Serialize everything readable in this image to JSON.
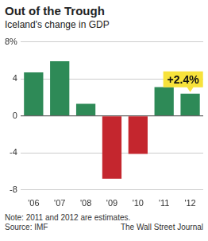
{
  "chart_data": {
    "type": "bar",
    "title": "Out of the Trough",
    "subtitle": "Iceland's change in GDP",
    "categories": [
      "'06",
      "'07",
      "'08",
      "'09",
      "'10",
      "'11",
      "'12"
    ],
    "values": [
      4.7,
      5.9,
      1.3,
      -6.8,
      -4.1,
      3.1,
      2.4
    ],
    "colors": [
      "#2e8a57",
      "#2e8a57",
      "#2e8a57",
      "#c4262e",
      "#c4262e",
      "#2e8a57",
      "#2e8a57"
    ],
    "ylim": [
      -8,
      8
    ],
    "yticks": [
      {
        "value": 8,
        "label": "8%"
      },
      4,
      0,
      -4,
      -8
    ],
    "grid": true,
    "annotations": [
      {
        "text": "+2.4%",
        "x": "'12",
        "y": 2.4
      }
    ],
    "note": "Note: 2011 and 2012 are estimates.",
    "source": "Source: IMF",
    "credit": "The Wall Street Journal"
  }
}
